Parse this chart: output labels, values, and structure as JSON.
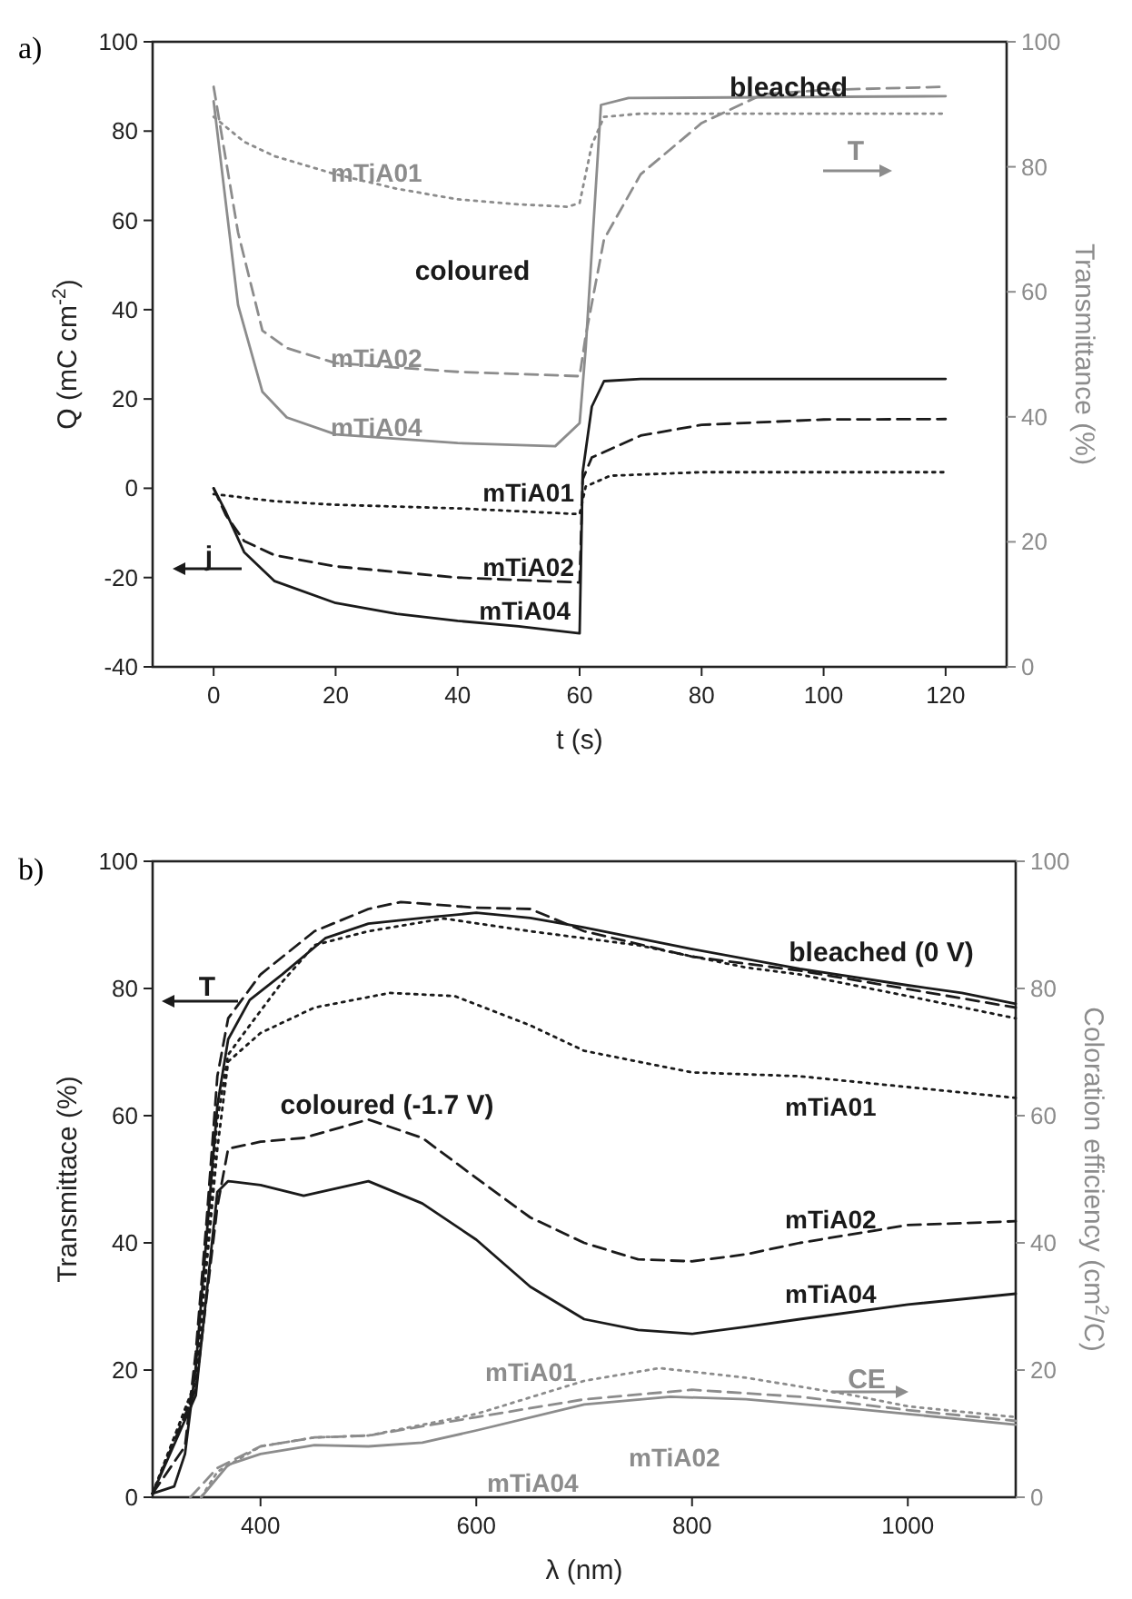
{
  "chart_data": [
    {
      "type": "line",
      "title": "a)",
      "xlabel": "t (s)",
      "ylabel": "Q (mC cm$^{-2}$)",
      "y2label": "Transmittance (%)",
      "xlim": [
        -10,
        130
      ],
      "xticks": [
        0,
        20,
        40,
        60,
        80,
        100,
        120
      ],
      "ylim": [
        -40,
        100
      ],
      "yticks": [
        -40,
        -20,
        0,
        20,
        40,
        60,
        80,
        100
      ],
      "y2lim": [
        0,
        100
      ],
      "y2ticks": [
        0,
        20,
        40,
        60,
        80,
        100
      ],
      "grid": false,
      "marker": "none",
      "annotations": [
        "coloured",
        "bleached",
        "T",
        "j"
      ],
      "series": [
        {
          "name": "mTiA01",
          "color": "#1a1a1a",
          "line_style": "dotted",
          "x": [
            0,
            10,
            20,
            40,
            60,
            61,
            65,
            80,
            120
          ],
          "values": [
            -1.3,
            -2.9,
            -3.7,
            -4.5,
            -5.8,
            0.4,
            2.8,
            3.6,
            3.6
          ]
        },
        {
          "name": "mTiA02",
          "color": "#1a1a1a",
          "line_style": "dashed",
          "x": [
            0,
            2,
            5,
            10,
            20,
            40,
            60,
            60.5,
            62,
            70,
            80,
            100,
            120
          ],
          "values": [
            0,
            -6,
            -11.8,
            -15,
            -17.5,
            -20,
            -21.1,
            2,
            6.9,
            11.8,
            14.2,
            15.4,
            15.5
          ]
        },
        {
          "name": "mTiA04",
          "color": "#1a1a1a",
          "line_style": "solid",
          "x": [
            0,
            2,
            5,
            10,
            20,
            30,
            40,
            50,
            60,
            60.5,
            62,
            64,
            70,
            120
          ],
          "values": [
            0,
            -5.3,
            -14.3,
            -20.8,
            -25.7,
            -28.1,
            -29.7,
            -30.9,
            -32.5,
            3.6,
            18.3,
            24,
            24.5,
            24.5
          ]
        },
        {
          "name": "mTiA01",
          "color": "#8c8c8c",
          "line_style": "dotted",
          "axis": "y2",
          "x": [
            0,
            5,
            10,
            20,
            30,
            40,
            50,
            58,
            60,
            62,
            64,
            70,
            120
          ],
          "values": [
            88,
            84,
            81.7,
            78.8,
            76.5,
            74.8,
            74,
            73.6,
            74.2,
            83.5,
            88,
            88.5,
            88.5
          ]
        },
        {
          "name": "mTiA02",
          "color": "#8c8c8c",
          "line_style": "dashed",
          "axis": "y2",
          "x": [
            0,
            4,
            8,
            12,
            20,
            40,
            60,
            61,
            64,
            70,
            80,
            90,
            100,
            120
          ],
          "values": [
            92.8,
            69.5,
            53.8,
            51,
            48.6,
            47.2,
            46.5,
            53,
            68.4,
            78.8,
            87,
            91.6,
            92.3,
            92.8
          ]
        },
        {
          "name": "mTiA04",
          "color": "#8c8c8c",
          "line_style": "solid",
          "axis": "y2",
          "x": [
            0,
            4,
            8,
            12,
            20,
            40,
            56,
            60,
            61,
            63.5,
            68,
            120
          ],
          "values": [
            90.5,
            57.9,
            44,
            39.9,
            37.2,
            35.8,
            35.3,
            39,
            51,
            89.9,
            91,
            91.3
          ]
        }
      ]
    },
    {
      "type": "line",
      "title": "b)",
      "xlabel": "λ (nm)",
      "ylabel": "Transmittace (%)",
      "y2label": "Coloration efficiency (cm$^{2}$/C)",
      "xlim": [
        300,
        1100
      ],
      "xticks": [
        400,
        600,
        800,
        1000
      ],
      "ylim": [
        0,
        100
      ],
      "yticks": [
        0,
        20,
        40,
        60,
        80,
        100
      ],
      "y2lim": [
        0,
        100
      ],
      "y2ticks": [
        0,
        20,
        40,
        60,
        80,
        100
      ],
      "grid": false,
      "marker": "none",
      "annotations": [
        "bleached (0 V)",
        "coloured (-1.7 V)",
        "T",
        "CE"
      ],
      "series": [
        {
          "color": "#1a1a1a",
          "line_style": "solid",
          "x": [
            300,
            320,
            330,
            340,
            350,
            360,
            370,
            390,
            420,
            460,
            500,
            550,
            600,
            650,
            700,
            800,
            900,
            1000,
            1050,
            1100
          ],
          "values": [
            0.6,
            1.7,
            6.8,
            20.5,
            41,
            61.6,
            72,
            78.2,
            82.2,
            87.9,
            90.2,
            91.1,
            91.9,
            91.1,
            89.6,
            86.2,
            83.1,
            80.5,
            79.3,
            77.6
          ]
        },
        {
          "color": "#1a1a1a",
          "line_style": "dashed",
          "x": [
            300,
            330,
            340,
            350,
            360,
            370,
            400,
            450,
            500,
            530,
            600,
            650,
            700,
            800,
            900,
            1000,
            1100
          ],
          "values": [
            0.6,
            8,
            22.8,
            43.4,
            66.2,
            75.3,
            82.2,
            89,
            92.5,
            93.6,
            92.7,
            92.5,
            89,
            85,
            82.8,
            79.9,
            77
          ]
        },
        {
          "color": "#1a1a1a",
          "line_style": "dotted",
          "x": [
            300,
            340,
            360,
            370,
            390,
            420,
            450,
            500,
            570,
            650,
            750,
            850,
            900,
            1000,
            1100
          ],
          "values": [
            0.6,
            18.3,
            59.4,
            69.6,
            74.2,
            81,
            86.8,
            89,
            91,
            89,
            86.8,
            83.3,
            82.2,
            78.8,
            75.3
          ]
        },
        {
          "name": "mTiA01",
          "color": "#1a1a1a",
          "line_style": "dotted",
          "x": [
            300,
            340,
            360,
            370,
            400,
            450,
            520,
            580,
            650,
            700,
            800,
            900,
            1000,
            1100
          ],
          "values": [
            0.6,
            18,
            54.8,
            68.5,
            73,
            77,
            79.3,
            78.8,
            74.2,
            70.2,
            66.8,
            66.2,
            64.5,
            62.8
          ]
        },
        {
          "name": "mTiA02",
          "color": "#1a1a1a",
          "line_style": "dashed",
          "x": [
            300,
            340,
            360,
            370,
            400,
            440,
            500,
            550,
            600,
            650,
            700,
            750,
            800,
            850,
            900,
            1000,
            1100
          ],
          "values": [
            0.6,
            17,
            45.7,
            54.8,
            55.9,
            56.5,
            59.4,
            56.5,
            50.2,
            44,
            40,
            37.4,
            37.1,
            38.2,
            40,
            42.8,
            43.4
          ]
        },
        {
          "name": "mTiA04",
          "color": "#1a1a1a",
          "line_style": "solid",
          "x": [
            300,
            340,
            360,
            370,
            400,
            440,
            500,
            550,
            600,
            650,
            700,
            750,
            800,
            850,
            900,
            1000,
            1100
          ],
          "values": [
            0.6,
            16,
            48,
            49.7,
            49.1,
            47.4,
            49.7,
            46.2,
            40.5,
            33.1,
            28,
            26.3,
            25.7,
            26.8,
            28,
            30.3,
            32
          ]
        },
        {
          "name": "mTiA01",
          "color": "#8c8c8c",
          "line_style": "dotted",
          "axis": "y2",
          "x": [
            345,
            360,
            400,
            450,
            500,
            600,
            700,
            770,
            850,
            950,
            1000,
            1100
          ],
          "values": [
            0,
            4,
            8,
            9.4,
            9.7,
            13.1,
            18.3,
            20.3,
            18.8,
            16,
            14.3,
            12.6
          ]
        },
        {
          "name": "mTiA02",
          "color": "#8c8c8c",
          "line_style": "dashed",
          "axis": "y2",
          "x": [
            335,
            360,
            400,
            450,
            500,
            600,
            700,
            800,
            900,
            1000,
            1100
          ],
          "values": [
            0,
            4.6,
            8,
            9.4,
            9.7,
            12.6,
            15.4,
            16.9,
            15.8,
            13.7,
            12
          ]
        },
        {
          "name": "mTiA04",
          "color": "#8c8c8c",
          "line_style": "solid",
          "axis": "y2",
          "x": [
            345,
            370,
            400,
            450,
            500,
            550,
            600,
            700,
            780,
            850,
            950,
            1000,
            1100
          ],
          "values": [
            0,
            5.1,
            6.8,
            8.2,
            8,
            8.6,
            10.5,
            14.6,
            15.8,
            15.4,
            13.9,
            13.1,
            11.4
          ]
        }
      ]
    }
  ]
}
